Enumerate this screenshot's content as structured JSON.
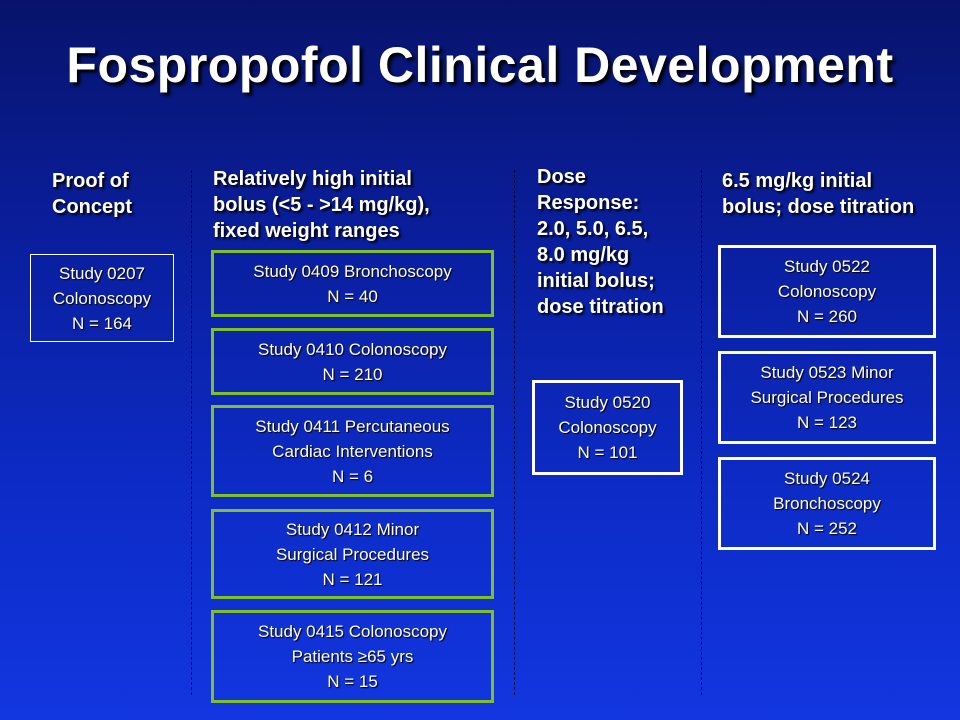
{
  "title": "Fospropofol Clinical Development",
  "columns": [
    {
      "heading": [
        "Proof of",
        "Concept"
      ],
      "studies": [
        {
          "lines": [
            "Study 0207",
            "Colonoscopy",
            "N = 164"
          ]
        }
      ]
    },
    {
      "heading": [
        "Relatively high initial",
        "bolus (<5 - >14 mg/kg),",
        "fixed weight ranges"
      ],
      "studies": [
        {
          "lines": [
            "Study 0409 Bronchoscopy",
            "N = 40"
          ]
        },
        {
          "lines": [
            "Study 0410 Colonoscopy",
            "N = 210"
          ]
        },
        {
          "lines": [
            "Study 0411 Percutaneous",
            "Cardiac Interventions",
            "N = 6"
          ]
        },
        {
          "lines": [
            "Study 0412 Minor",
            "Surgical Procedures",
            "N = 121"
          ]
        },
        {
          "lines": [
            "Study 0415 Colonoscopy",
            "Patients ≥65 yrs",
            "N = 15"
          ]
        }
      ]
    },
    {
      "heading": [
        "Dose",
        "Response:",
        "2.0, 5.0, 6.5,",
        "8.0 mg/kg",
        "initial bolus;",
        "dose titration"
      ],
      "studies": [
        {
          "lines": [
            "Study 0520",
            "Colonoscopy",
            "N = 101"
          ]
        }
      ]
    },
    {
      "heading": [
        "6.5 mg/kg initial",
        "bolus; dose titration"
      ],
      "studies": [
        {
          "lines": [
            "Study 0522",
            "Colonoscopy",
            "N = 260"
          ]
        },
        {
          "lines": [
            "Study 0523 Minor",
            "Surgical Procedures",
            "N = 123"
          ]
        },
        {
          "lines": [
            "Study 0524",
            "Bronchoscopy",
            "N = 252"
          ]
        }
      ]
    }
  ],
  "colors": {
    "background": "#0d2cc8",
    "green_border": "#7fbf2a",
    "white_border": "#ffffff"
  }
}
